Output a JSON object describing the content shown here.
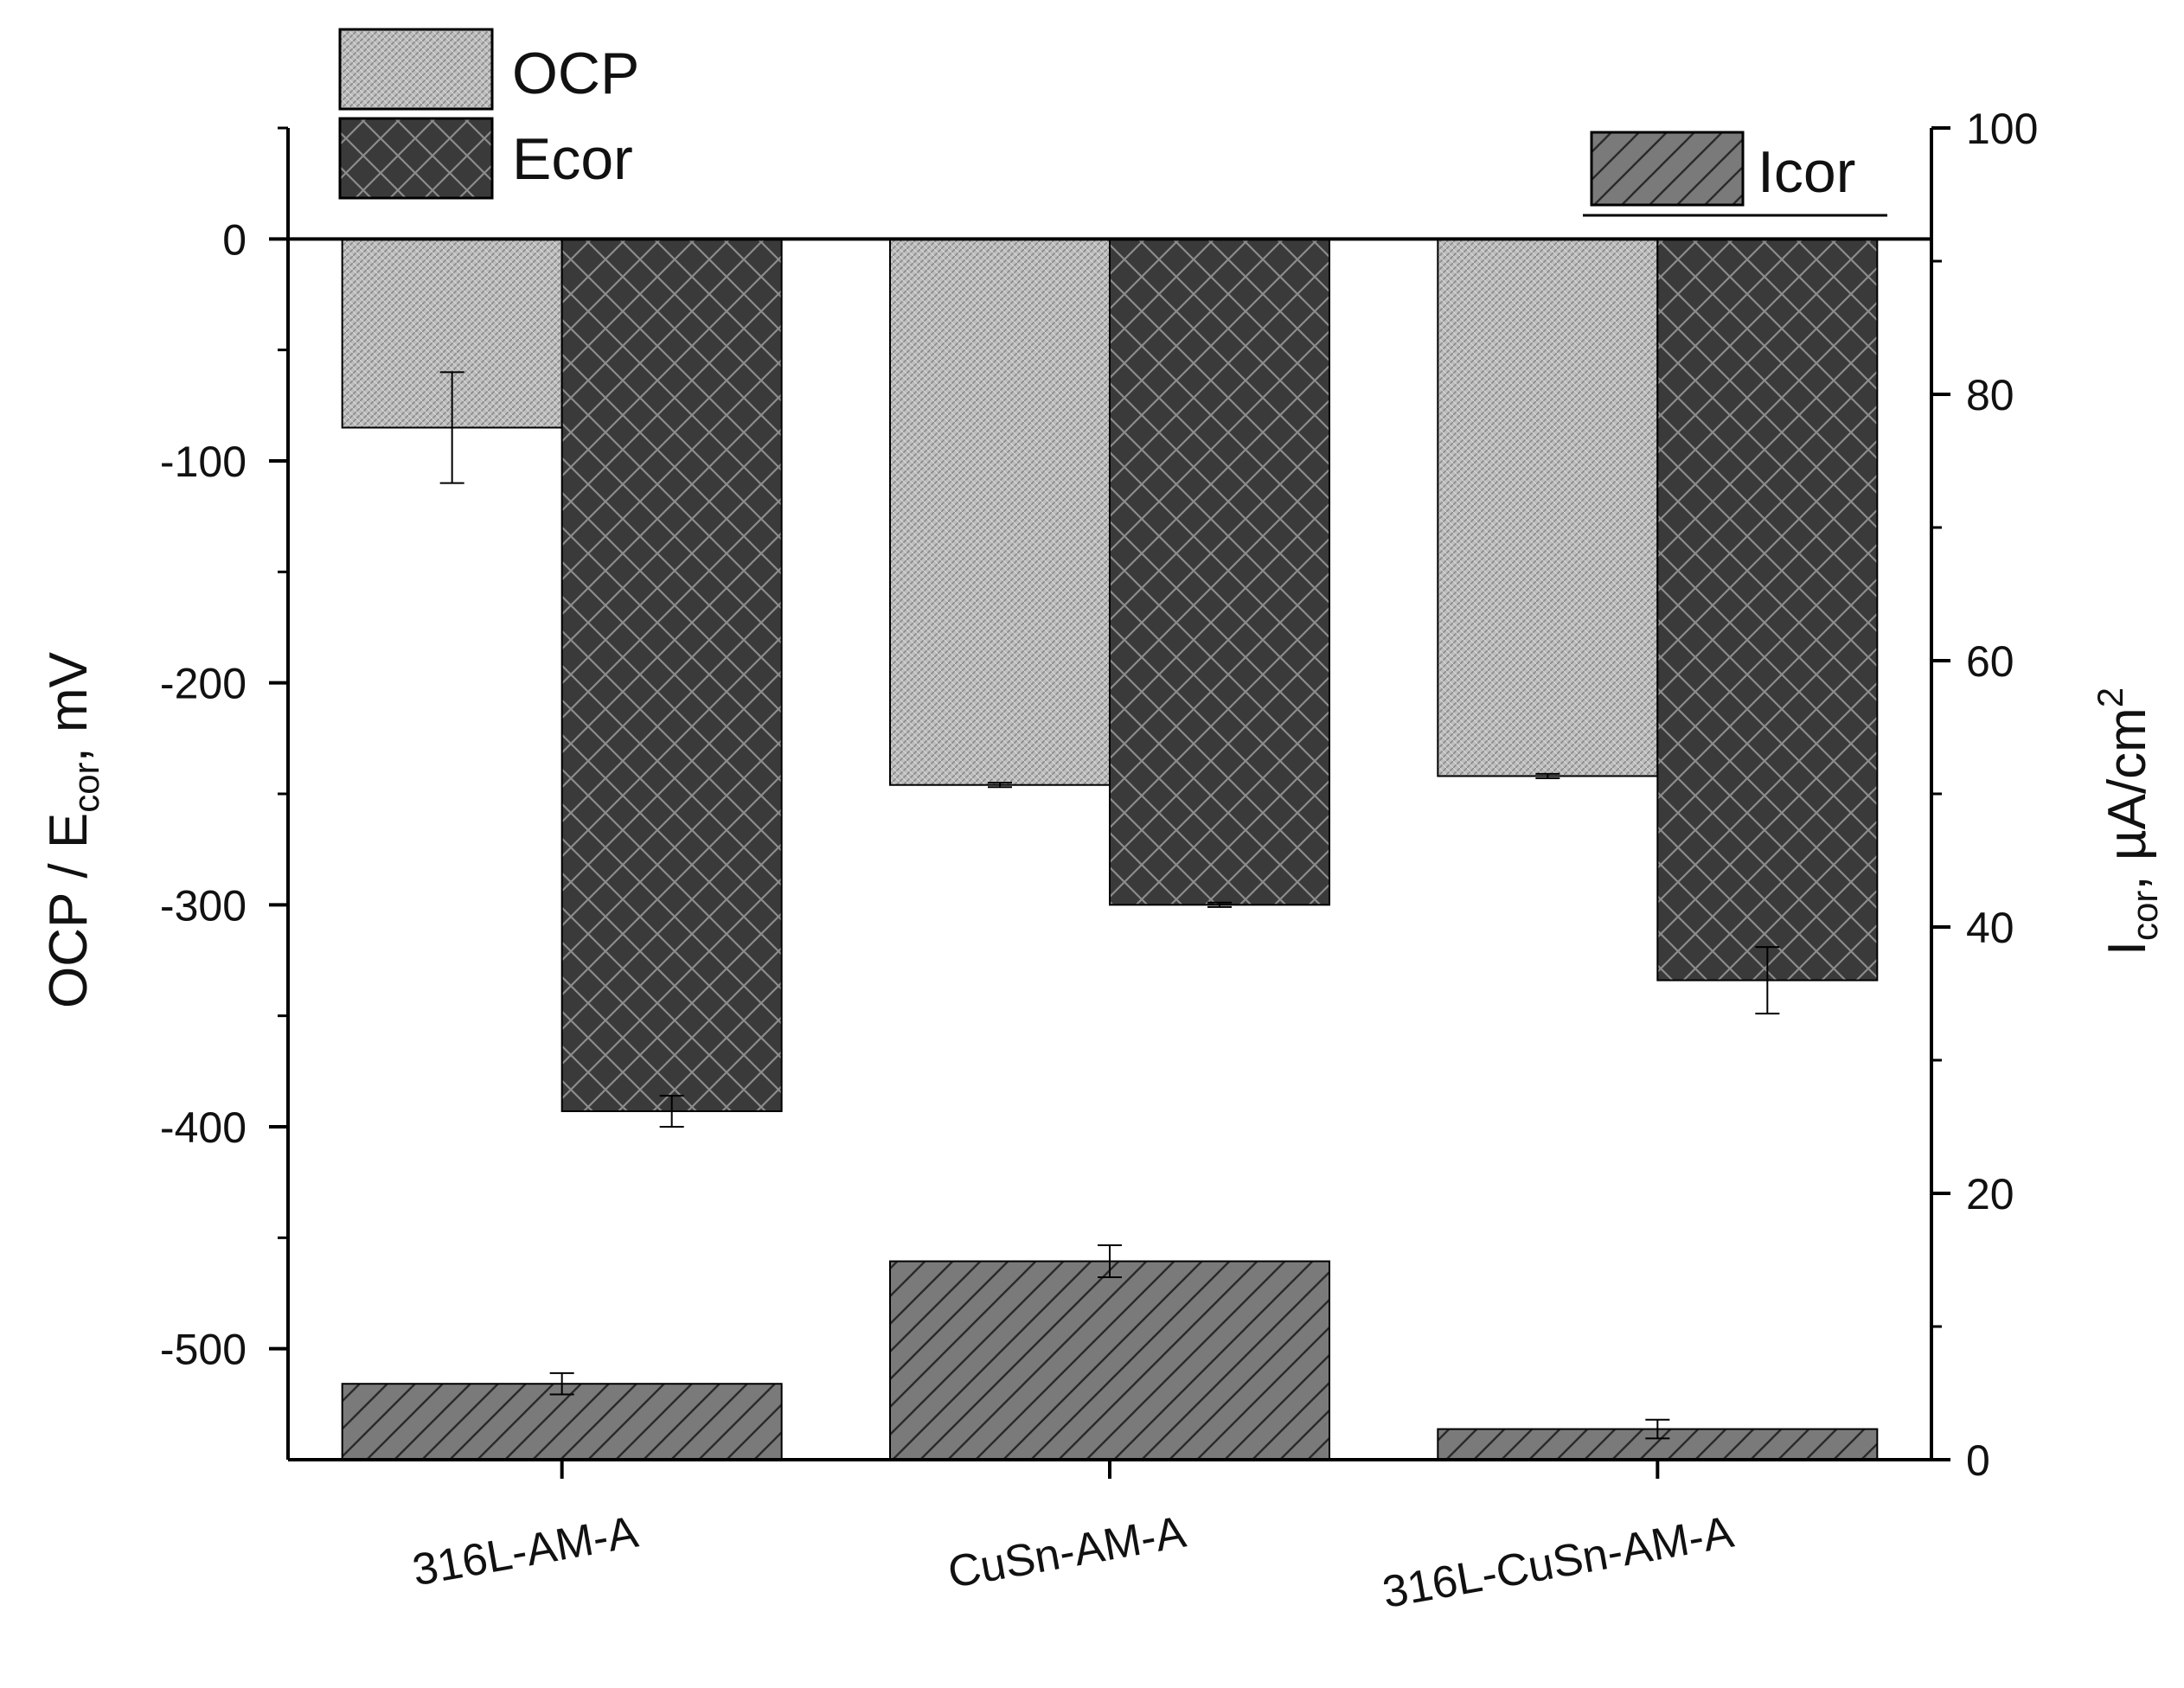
{
  "chart_data": {
    "type": "bar",
    "categories": [
      "316L-AM-A",
      "CuSn-AM-A",
      "316L-CuSn-AM-A"
    ],
    "left_axis": {
      "label_parts": [
        "OCP / E",
        "cor",
        ", mV"
      ],
      "ylim": [
        -550,
        50
      ],
      "ticks": [
        0,
        -100,
        -200,
        -300,
        -400,
        -500
      ],
      "tick_labels": [
        "0",
        "-100",
        "-200",
        "-300",
        "-400",
        "-500"
      ]
    },
    "right_axis": {
      "label_parts": [
        "I",
        "cor",
        ", µA/cm",
        "2"
      ],
      "ylim": [
        0,
        100
      ],
      "ticks": [
        0,
        20,
        40,
        60,
        80,
        100
      ],
      "tick_labels": [
        "0",
        "20",
        "40",
        "60",
        "80",
        "100"
      ]
    },
    "series": [
      {
        "name": "OCP",
        "axis": "left",
        "values": [
          -85,
          -246,
          -242
        ],
        "errors": [
          25,
          1,
          1
        ],
        "color": "#b8b8b8"
      },
      {
        "name": "Ecor",
        "axis": "left",
        "values": [
          -393,
          -300,
          -334
        ],
        "errors": [
          7,
          1,
          15
        ],
        "color": "#3a3a3a"
      },
      {
        "name": "Icor",
        "axis": "right",
        "values": [
          5.7,
          14.9,
          2.3
        ],
        "errors": [
          0.8,
          1.2,
          0.7
        ],
        "color": "#7a7a7a"
      }
    ],
    "legend": {
      "position": "top-left and top-right",
      "items": [
        "OCP",
        "Ecor",
        "Icor"
      ]
    }
  }
}
